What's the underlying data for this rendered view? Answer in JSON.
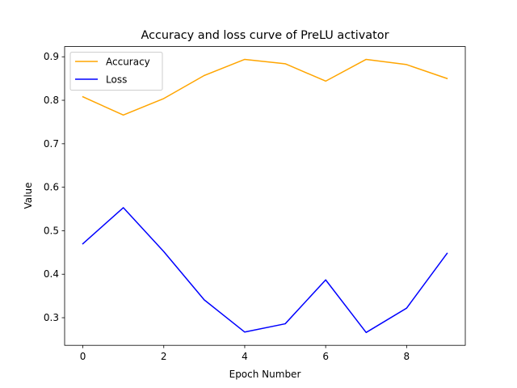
{
  "chart_data": {
    "type": "line",
    "title": "Accuracy and loss curve of PreLU activator",
    "xlabel": "Epoch Number",
    "ylabel": "Value",
    "x": [
      0,
      1,
      2,
      3,
      4,
      5,
      6,
      7,
      8,
      9
    ],
    "series": [
      {
        "name": "Accuracy",
        "color": "#ffa500",
        "values": [
          0.808,
          0.766,
          0.804,
          0.857,
          0.894,
          0.884,
          0.844,
          0.894,
          0.882,
          0.85
        ]
      },
      {
        "name": "Loss",
        "color": "#0000ff",
        "values": [
          0.47,
          0.553,
          0.452,
          0.341,
          0.267,
          0.286,
          0.387,
          0.266,
          0.322,
          0.448
        ]
      }
    ],
    "xlim": [
      -0.45,
      9.45
    ],
    "ylim": [
      0.2365,
      0.9235
    ],
    "xticks": [
      0,
      2,
      4,
      6,
      8
    ],
    "yticks": [
      0.3,
      0.4,
      0.5,
      0.6,
      0.7,
      0.8,
      0.9
    ],
    "grid": false,
    "legend_position": "upper left"
  }
}
